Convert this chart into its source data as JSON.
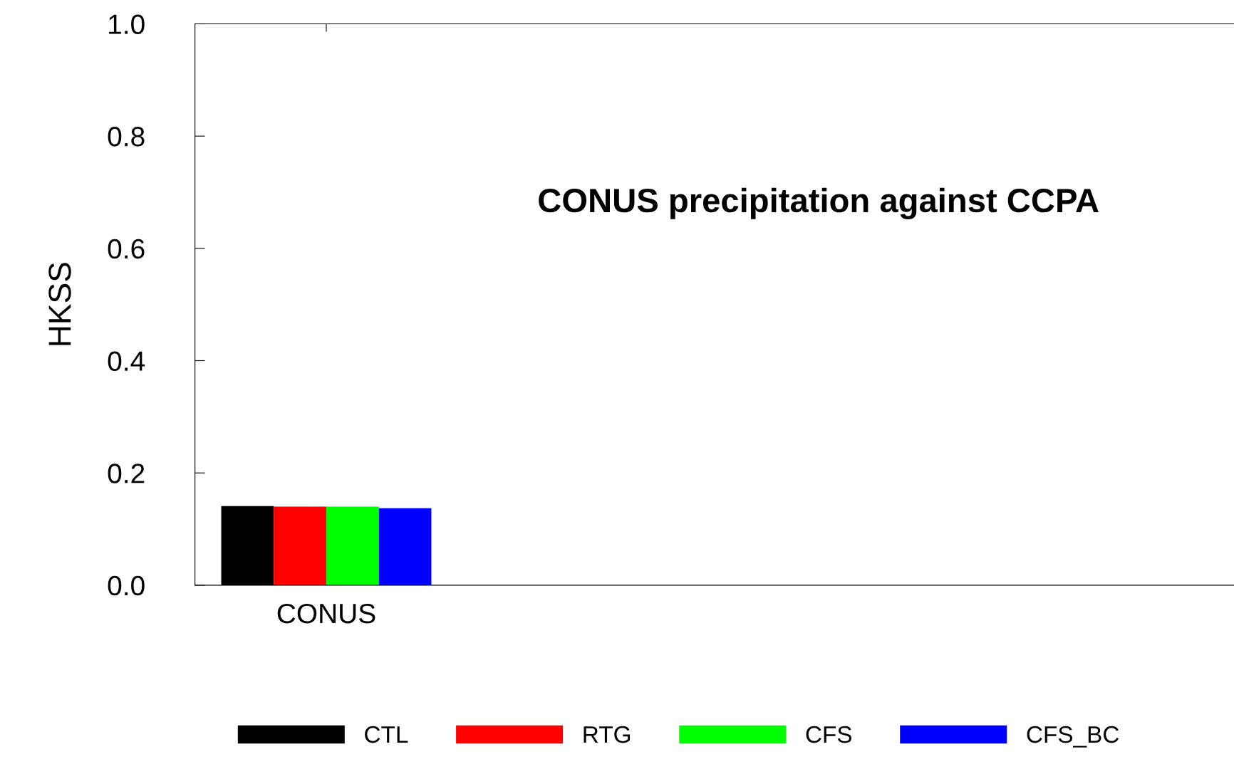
{
  "chart_data": {
    "type": "bar",
    "annotations": [
      "CONUS precipitation against CCPA"
    ],
    "ylabel": "HKSS",
    "categories": [
      "CONUS"
    ],
    "series": [
      {
        "name": "CTL",
        "color": "#000000",
        "values": [
          0.141
        ]
      },
      {
        "name": "RTG",
        "color": "#ff0000",
        "values": [
          0.14
        ]
      },
      {
        "name": "CFS",
        "color": "#00ff00",
        "values": [
          0.14
        ]
      },
      {
        "name": "CFS_BC",
        "color": "#0000ff",
        "values": [
          0.137
        ]
      }
    ],
    "ylim": [
      0.0,
      1.0
    ],
    "yticks": [
      {
        "value": 0.0,
        "label": "0.0"
      },
      {
        "value": 0.2,
        "label": "0.2"
      },
      {
        "value": 0.4,
        "label": "0.4"
      },
      {
        "value": 0.6,
        "label": "0.6"
      },
      {
        "value": 0.8,
        "label": "0.8"
      },
      {
        "value": 1.0,
        "label": "1.0"
      }
    ],
    "grid": false,
    "legend": "bottom"
  }
}
